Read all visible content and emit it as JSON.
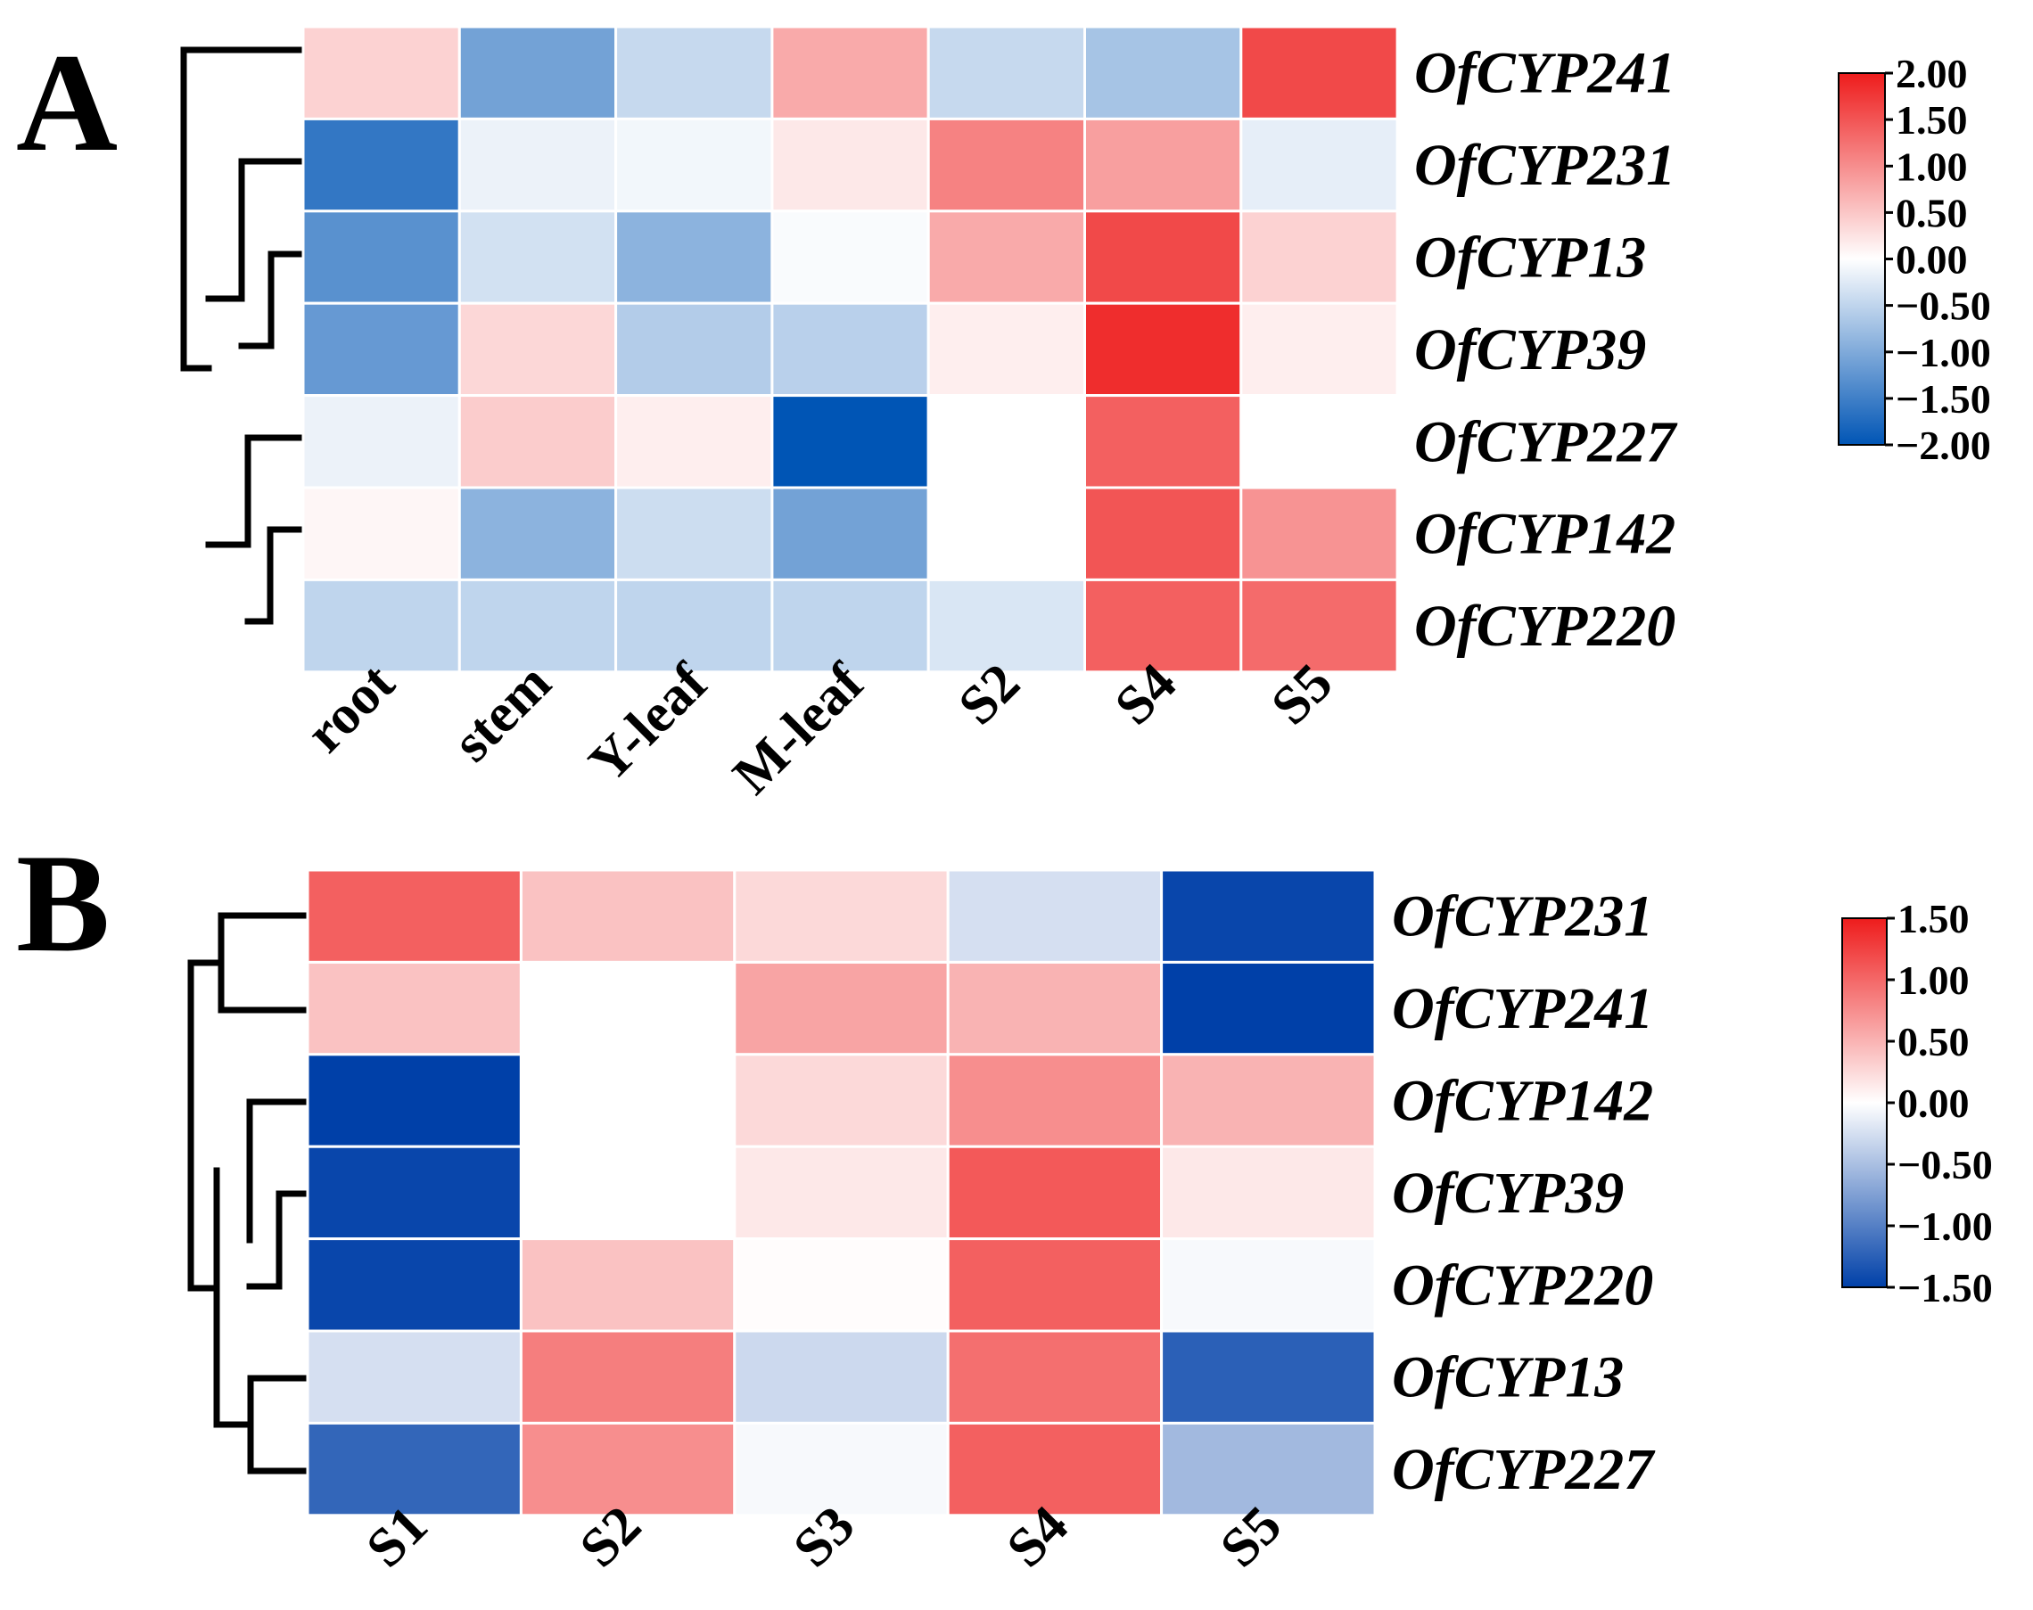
{
  "chart_data": [
    {
      "type": "heatmap",
      "panel_label": "A",
      "columns": [
        "root",
        "stem",
        "Y-leaf",
        "M-leaf",
        "S2",
        "S4",
        "S5"
      ],
      "rows": [
        "OfCYP241",
        "OfCYP231",
        "OfCYP13",
        "OfCYP39",
        "OfCYP227",
        "OfCYP142",
        "OfCYP220"
      ],
      "values": [
        [
          0.4,
          -1.1,
          -0.45,
          0.75,
          -0.45,
          -0.7,
          1.6
        ],
        [
          -1.6,
          -0.15,
          -0.1,
          0.2,
          1.1,
          0.85,
          -0.2
        ],
        [
          -1.3,
          -0.35,
          -0.9,
          -0.05,
          0.75,
          1.6,
          0.4
        ],
        [
          -1.2,
          0.35,
          -0.6,
          -0.55,
          0.15,
          1.85,
          0.15
        ],
        [
          -0.15,
          0.45,
          0.15,
          -2.0,
          0.0,
          1.4,
          0.0
        ],
        [
          0.08,
          -0.9,
          -0.4,
          -1.1,
          0.0,
          1.5,
          0.95
        ],
        [
          -0.5,
          -0.5,
          -0.5,
          -0.5,
          -0.3,
          1.4,
          1.3
        ]
      ],
      "colorbar": {
        "min": -2.0,
        "max": 2.0,
        "ticks": [
          "2.00",
          "1.50",
          "1.00",
          "0.50",
          "0.00",
          "−0.50",
          "−1.00",
          "−1.50",
          "−2.00"
        ],
        "tick_values": [
          2.0,
          1.5,
          1.0,
          0.5,
          0.0,
          -0.5,
          -1.0,
          -1.5,
          -2.0
        ]
      },
      "colors": {
        "low": "#0055b5",
        "mid": "#ffffff",
        "high": "#ee1c1c"
      }
    },
    {
      "type": "heatmap",
      "panel_label": "B",
      "columns": [
        "S1",
        "S2",
        "S3",
        "S4",
        "S5"
      ],
      "rows": [
        "OfCYP231",
        "OfCYP241",
        "OfCYP142",
        "OfCYP39",
        "OfCYP220",
        "OfCYP13",
        "OfCYP227"
      ],
      "values": [
        [
          1.05,
          0.4,
          0.25,
          -0.25,
          -1.45
        ],
        [
          0.4,
          0.0,
          0.6,
          0.5,
          -1.5
        ],
        [
          -1.5,
          0.0,
          0.25,
          0.75,
          0.5
        ],
        [
          -1.45,
          0.0,
          0.15,
          1.1,
          0.15
        ],
        [
          -1.45,
          0.4,
          0.02,
          1.05,
          -0.05
        ],
        [
          -0.25,
          0.85,
          -0.3,
          0.95,
          -1.25
        ],
        [
          -1.2,
          0.75,
          -0.05,
          1.05,
          -0.55
        ]
      ],
      "colorbar": {
        "min": -1.5,
        "max": 1.5,
        "ticks": [
          "1.50",
          "1.00",
          "0.50",
          "0.00",
          "−0.50",
          "−1.00",
          "−1.50"
        ],
        "tick_values": [
          1.5,
          1.0,
          0.5,
          0.0,
          -0.5,
          -1.0,
          -1.5
        ]
      },
      "colors": {
        "low": "#0040a8",
        "mid": "#ffffff",
        "high": "#ee1c1c"
      }
    }
  ]
}
